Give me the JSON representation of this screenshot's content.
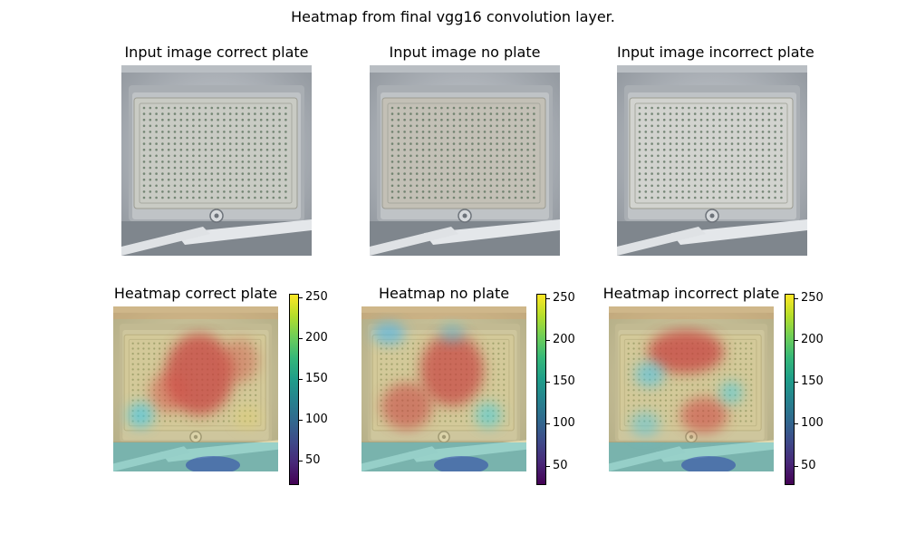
{
  "figure": {
    "suptitle": "Heatmap from final vgg16 convolution layer."
  },
  "panels": [
    {
      "kind": "input",
      "title": "Input image correct plate",
      "plate_tone": "#c9cbc4"
    },
    {
      "kind": "input",
      "title": "Input image no plate",
      "plate_tone": "#c3c0b6"
    },
    {
      "kind": "input",
      "title": "Input image incorrect plate",
      "plate_tone": "#d2d3cf"
    },
    {
      "kind": "heatmap",
      "title": "Heatmap correct plate",
      "variant": "correct"
    },
    {
      "kind": "heatmap",
      "title": "Heatmap no plate",
      "variant": "none"
    },
    {
      "kind": "heatmap",
      "title": "Heatmap incorrect plate",
      "variant": "incorrect"
    }
  ],
  "colorbars": [
    {
      "for": "Heatmap correct plate",
      "colormap": "viridis",
      "min": 20,
      "max": 255,
      "ticks": [
        50,
        100,
        150,
        200,
        250
      ]
    },
    {
      "for": "Heatmap no plate",
      "colormap": "viridis",
      "min": 27,
      "max": 255,
      "ticks": [
        50,
        100,
        150,
        200,
        250
      ]
    },
    {
      "for": "Heatmap incorrect plate",
      "colormap": "viridis",
      "min": 27,
      "max": 255,
      "ticks": [
        50,
        100,
        150,
        200,
        250
      ]
    }
  ],
  "chart_data": {
    "type": "heatmap",
    "title": "Heatmap from final vgg16 convolution layer.",
    "colormap": "viridis",
    "subplots": [
      {
        "title": "Input image correct plate",
        "content": "image"
      },
      {
        "title": "Input image no plate",
        "content": "image"
      },
      {
        "title": "Input image incorrect plate",
        "content": "image"
      },
      {
        "title": "Heatmap correct plate",
        "content": "heatmap",
        "colorbar_range": [
          20,
          255
        ],
        "colorbar_ticks": [
          50,
          100,
          150,
          200,
          250
        ]
      },
      {
        "title": "Heatmap no plate",
        "content": "heatmap",
        "colorbar_range": [
          27,
          255
        ],
        "colorbar_ticks": [
          50,
          100,
          150,
          200,
          250
        ]
      },
      {
        "title": "Heatmap incorrect plate",
        "content": "heatmap",
        "colorbar_range": [
          27,
          255
        ],
        "colorbar_ticks": [
          50,
          100,
          150,
          200,
          250
        ]
      }
    ]
  }
}
